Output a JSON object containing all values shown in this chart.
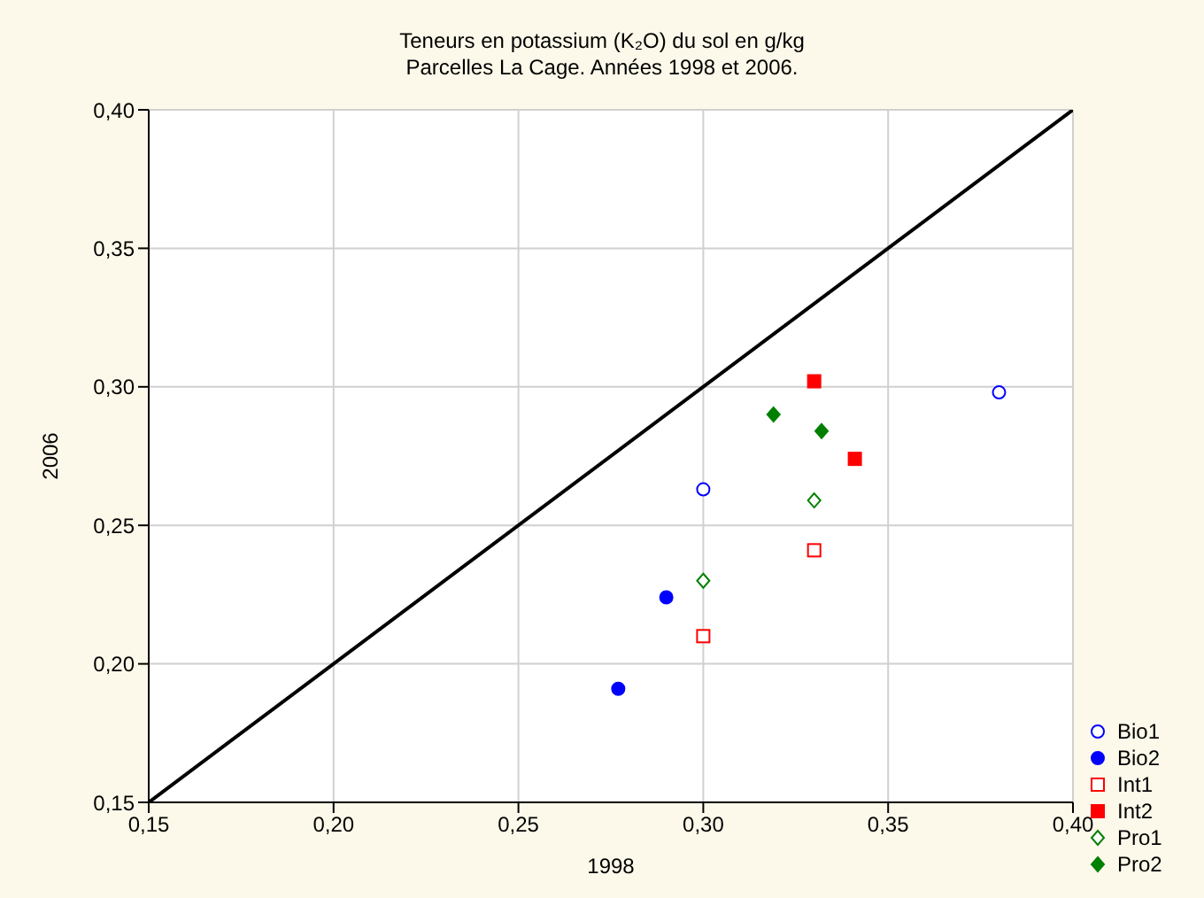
{
  "chart_data": {
    "type": "scatter",
    "title": "Teneurs en potassium (K₂O) du sol en g/kg",
    "subtitle": "Parcelles La Cage. Années 1998 et 2006.",
    "xlabel": "1998",
    "ylabel": "2006",
    "xlim": [
      0.15,
      0.4
    ],
    "ylim": [
      0.15,
      0.4
    ],
    "xticks": [
      {
        "value": 0.15,
        "label": "0,15"
      },
      {
        "value": 0.2,
        "label": "0,20"
      },
      {
        "value": 0.25,
        "label": "0,25"
      },
      {
        "value": 0.3,
        "label": "0,30"
      },
      {
        "value": 0.35,
        "label": "0,35"
      },
      {
        "value": 0.4,
        "label": "0,40"
      }
    ],
    "yticks": [
      {
        "value": 0.15,
        "label": "0,15"
      },
      {
        "value": 0.2,
        "label": "0,20"
      },
      {
        "value": 0.25,
        "label": "0,25"
      },
      {
        "value": 0.3,
        "label": "0,30"
      },
      {
        "value": 0.35,
        "label": "0,35"
      },
      {
        "value": 0.4,
        "label": "0,40"
      }
    ],
    "grid": true,
    "legend": "bottom right",
    "series": [
      {
        "type": "line",
        "color": "#000000",
        "x": [
          0.15,
          0.4
        ],
        "values": [
          0.15,
          0.4
        ]
      },
      {
        "name": "Bio1",
        "color": "#0000ff",
        "marker": "circle",
        "x": [
          0.3,
          0.38
        ],
        "values": [
          0.263,
          0.298
        ]
      },
      {
        "name": "Bio2",
        "color": "#0000ff",
        "marker": "circle",
        "x": [
          0.29,
          0.277
        ],
        "values": [
          0.224,
          0.191
        ]
      },
      {
        "name": "Int1",
        "color": "#ff0000",
        "marker": "square",
        "x": [
          0.3,
          0.33
        ],
        "values": [
          0.21,
          0.241
        ]
      },
      {
        "name": "Int2",
        "color": "#ff0000",
        "marker": "square",
        "x": [
          0.33,
          0.341
        ],
        "values": [
          0.302,
          0.274
        ]
      },
      {
        "name": "Pro1",
        "color": "#008000",
        "marker": "diamond",
        "x": [
          0.3,
          0.33
        ],
        "values": [
          0.23,
          0.259
        ]
      },
      {
        "name": "Pro2",
        "color": "#008000",
        "marker": "diamond",
        "x": [
          0.319,
          0.332
        ],
        "values": [
          0.29,
          0.284
        ]
      }
    ]
  }
}
